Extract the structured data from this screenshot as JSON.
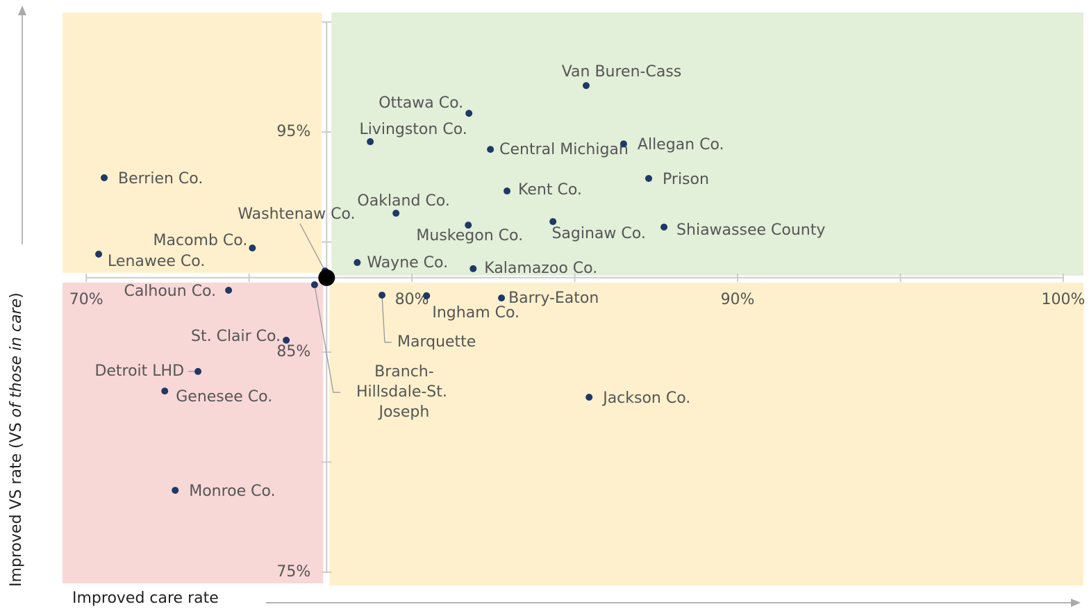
{
  "chart_data": {
    "type": "scatter",
    "x_label": "Improved care rate",
    "y_label": [
      "Improved VS rate (VS ",
      "of those in care",
      ")"
    ],
    "labels": [
      "Van Buren-Cass",
      "Ottawa Co.",
      "Livingston Co.",
      "Central Michigan",
      "Allegan Co.",
      "Prison",
      "Berrien Co.",
      "Kent Co.",
      "Oakland Co.",
      "Muskegon Co.",
      "Saginaw Co.",
      "Shiawassee County",
      "Macomb Co.",
      "Lenawee Co.",
      "Wayne Co.",
      "Kalamazoo Co.",
      "Washtenaw Co.",
      "Calhoun Co.",
      "Branch-Hillsdale-St. Joseph",
      "Marquette",
      "Ingham Co.",
      "Barry-Eaton",
      "St. Clair Co.",
      "Detroit LHD",
      "Genesee Co.",
      "Jackson Co.",
      "Monroe Co."
    ],
    "x": [
      85.35,
      81.75,
      78.72,
      82.41,
      86.5,
      87.27,
      70.55,
      82.92,
      79.51,
      81.73,
      84.33,
      87.74,
      75.1,
      70.38,
      78.32,
      81.88,
      77.33,
      74.37,
      77.01,
      79.08,
      80.45,
      82.75,
      76.14,
      73.43,
      72.41,
      85.44,
      72.73
    ],
    "y": [
      97.11,
      95.85,
      94.56,
      94.21,
      94.46,
      92.89,
      92.92,
      92.32,
      91.31,
      90.77,
      90.93,
      90.68,
      89.73,
      89.45,
      89.07,
      88.79,
      88.69,
      87.81,
      88.06,
      87.59,
      87.56,
      87.46,
      85.54,
      84.12,
      83.23,
      82.95,
      78.72
    ],
    "center": {
      "x": 77.38,
      "y": 88.38
    },
    "color": "#1f3864",
    "center_color": "#000000",
    "quadrant_colors": {
      "top_left": "#fef0cc",
      "top_right": "#e2efd9",
      "bottom_left": "#f8d7d7",
      "bottom_right": "#fef0cc"
    },
    "xlim": [
      69.27,
      100.62
    ],
    "ylim": [
      74.4,
      100.43
    ],
    "xticks": [
      {
        "value": 70,
        "label": "70%"
      },
      75,
      {
        "value": 80,
        "label": "80%"
      },
      85,
      {
        "value": 90,
        "label": "90%"
      },
      95,
      {
        "value": 100,
        "label": "100%"
      }
    ],
    "yticks": [
      {
        "value": 75,
        "label": "75%"
      },
      80,
      {
        "value": 85,
        "label": "85%"
      },
      90,
      {
        "value": 95,
        "label": "95%"
      },
      100
    ]
  }
}
